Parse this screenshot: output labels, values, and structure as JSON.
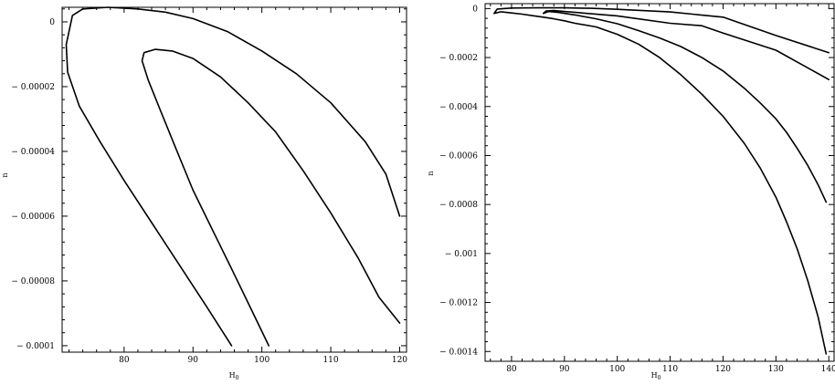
{
  "chart_data": [
    {
      "type": "line",
      "title": "",
      "xlabel": "H",
      "xlabel_sub": "0",
      "ylabel": "n",
      "xlim": [
        71,
        121
      ],
      "ylim": [
        -0.000102,
        4.5e-06
      ],
      "x_ticks": [
        80,
        90,
        100,
        110,
        120
      ],
      "x_tick_labels": [
        "80",
        "90",
        "100",
        "110",
        "120"
      ],
      "y_ticks": [
        0,
        -2e-05,
        -4e-05,
        -6e-05,
        -8e-05,
        -0.0001
      ],
      "y_tick_labels": [
        "0",
        "-0.00002",
        "-0.00004",
        "-0.00006",
        "-0.00008",
        "-0.0001"
      ],
      "grid": false,
      "series": [
        {
          "x": [
            95.6,
            92,
            88,
            84,
            80,
            76.5,
            73.5,
            71.8,
            71.6,
            72.5,
            74,
            77.7,
            82,
            86,
            90,
            95,
            100,
            105,
            110,
            115,
            118,
            120
          ],
          "y": [
            -0.0001,
            -8.8e-05,
            -7.5e-05,
            -6.2e-05,
            -4.9e-05,
            -3.7e-05,
            -2.6e-05,
            -1.55e-05,
            -7e-06,
            2e-06,
            4e-06,
            4.5e-06,
            4e-06,
            3e-06,
            1e-06,
            -3e-06,
            -9e-06,
            -1.6e-05,
            -2.5e-05,
            -3.7e-05,
            -4.7e-05,
            -6e-05
          ]
        },
        {
          "x": [
            101,
            98.5,
            96,
            93,
            90,
            87.5,
            85.2,
            83.5,
            82.6,
            82.9,
            84.5,
            87,
            90,
            94,
            98,
            102,
            106,
            110,
            114,
            117,
            120
          ],
          "y": [
            -0.0001,
            -8.9e-05,
            -7.8e-05,
            -6.5e-05,
            -5.2e-05,
            -3.9e-05,
            -2.7e-05,
            -1.8e-05,
            -1.2e-05,
            -9.5e-06,
            -8.5e-06,
            -9e-06,
            -1.13e-05,
            -1.7e-05,
            -2.5e-05,
            -3.4e-05,
            -4.6e-05,
            -5.9e-05,
            -7.3e-05,
            -8.5e-05,
            -9.3e-05
          ]
        }
      ]
    },
    {
      "type": "line",
      "title": "",
      "xlabel": "H",
      "xlabel_sub": "0",
      "ylabel": "n",
      "xlim": [
        75,
        141
      ],
      "ylim": [
        -0.00144,
        2e-05
      ],
      "x_ticks": [
        80,
        90,
        100,
        110,
        120,
        130,
        140
      ],
      "x_tick_labels": [
        "80",
        "90",
        "100",
        "110",
        "120",
        "130",
        "140"
      ],
      "y_ticks": [
        0,
        -0.0002,
        -0.0004,
        -0.0006,
        -0.0008,
        -0.001,
        -0.0012,
        -0.0014
      ],
      "y_tick_labels": [
        "0",
        "-0.0002",
        "-0.0004",
        "-0.0006",
        "-0.0008",
        "-0.001",
        "-0.0012",
        "-0.0014"
      ],
      "grid": false,
      "series": [
        {
          "x": [
            139.5,
            138,
            136,
            134,
            132,
            130,
            127,
            124,
            120,
            116,
            112,
            108,
            104,
            100,
            96,
            92,
            90,
            88,
            86,
            84,
            82,
            80,
            78,
            76.7,
            77.3,
            80,
            85,
            90,
            95,
            100,
            110,
            120,
            130,
            140
          ],
          "y": [
            -0.00141,
            -0.00126,
            -0.00111,
            -0.00098,
            -0.00087,
            -0.00077,
            -0.00065,
            -0.00055,
            -0.00044,
            -0.00035,
            -0.00027,
            -0.0002,
            -0.000145,
            -0.000105,
            -7.5e-05,
            -6e-05,
            -5e-05,
            -4.2e-05,
            -3.5e-05,
            -2.9e-05,
            -2.3e-05,
            -1.8e-05,
            -1.3e-05,
            -2e-05,
            -2e-06,
            2e-06,
            3e-06,
            3e-06,
            1e-06,
            -3e-06,
            -1.4e-05,
            -3.5e-05,
            -0.00011,
            -0.00018
          ]
        },
        {
          "x": [
            139.5,
            138,
            136,
            134,
            132,
            130,
            127,
            124,
            120,
            116,
            112,
            108,
            104,
            100,
            96,
            92,
            89,
            87,
            86,
            86.5,
            88,
            90,
            100,
            110,
            116,
            120,
            130,
            140
          ],
          "y": [
            -0.00079,
            -0.00072,
            -0.00064,
            -0.00057,
            -0.000505,
            -0.00045,
            -0.000385,
            -0.000325,
            -0.000255,
            -0.0002,
            -0.000155,
            -0.00012,
            -9e-05,
            -6.2e-05,
            -4.2e-05,
            -2.6e-05,
            -1.6e-05,
            -1.2e-05,
            -2e-05,
            -1e-05,
            -8e-06,
            -1.2e-05,
            -3e-05,
            -6e-05,
            -7e-05,
            -0.0001,
            -0.00017,
            -0.00029
          ]
        }
      ]
    }
  ]
}
